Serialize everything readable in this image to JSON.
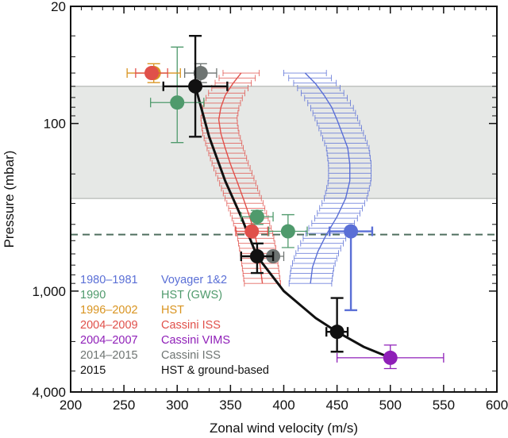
{
  "chart_data": {
    "type": "scatter",
    "title": "",
    "xlabel": "Zonal wind velocity (m/s)",
    "ylabel": "Pressure (mbar)",
    "x_range": [
      200,
      600
    ],
    "y_range": [
      20,
      4000
    ],
    "y_scale": "log",
    "y_reversed": true,
    "x_ticks": [
      "200",
      "250",
      "300",
      "350",
      "400",
      "450",
      "500",
      "550",
      "600"
    ],
    "y_ticks": [
      {
        "value": 20,
        "label": "20"
      },
      {
        "value": 100,
        "label": "100"
      },
      {
        "value": 1000,
        "label": "1,000"
      },
      {
        "value": 4000,
        "label": "4,000"
      }
    ],
    "shaded_band": {
      "from": 60,
      "to": 280,
      "color": "#e6e8e6"
    },
    "reference_line": {
      "pressure": 460,
      "style": "dashed",
      "color": "#4f6f5f"
    },
    "legend": [
      {
        "years": "1980–1981",
        "source": "Voyager 1&2",
        "color": "#5a6fd6"
      },
      {
        "years": "1990",
        "source": "HST (GWS)",
        "color": "#4f9a6c"
      },
      {
        "years": "1996–2002",
        "source": "HST",
        "color": "#d99420"
      },
      {
        "years": "2004–2009",
        "source": "Cassini ISS",
        "color": "#e0504a"
      },
      {
        "years": "2004–2007",
        "source": "Cassini VIMS",
        "color": "#8f1fb8"
      },
      {
        "years": "2014–2015",
        "source": "Cassini ISS",
        "color": "#6e7472"
      },
      {
        "years": "2015",
        "source": "HST & ground-based",
        "color": "#111111"
      }
    ],
    "series": [
      {
        "name": "Voyager 1&2",
        "color": "#5a6fd6",
        "profile": [
          [
            420,
            50
          ],
          [
            430,
            58
          ],
          [
            438,
            68
          ],
          [
            445,
            80
          ],
          [
            450,
            95
          ],
          [
            455,
            115
          ],
          [
            460,
            140
          ],
          [
            462,
            175
          ],
          [
            462,
            220
          ],
          [
            458,
            280
          ],
          [
            450,
            360
          ],
          [
            440,
            460
          ],
          [
            432,
            580
          ],
          [
            427,
            720
          ],
          [
            425,
            900
          ]
        ],
        "xerr": 20,
        "points": [
          {
            "x": 463,
            "y": 440,
            "xerr": 20,
            "ylow": 440,
            "yhigh": 1300
          }
        ]
      },
      {
        "name": "HST (GWS)",
        "color": "#4f9a6c",
        "points": [
          {
            "x": 300,
            "y": 75,
            "xerr": 25,
            "ylow": 35,
            "yhigh": 130
          },
          {
            "x": 375,
            "y": 360,
            "xerr": 15,
            "ylow": 330,
            "yhigh": 400
          },
          {
            "x": 404,
            "y": 440,
            "xerr": 18,
            "ylow": 350,
            "yhigh": 550
          }
        ]
      },
      {
        "name": "HST",
        "color": "#d99420",
        "points": [
          {
            "x": 278,
            "y": 50,
            "xerr": 25,
            "ylow": 44,
            "yhigh": 57
          }
        ]
      },
      {
        "name": "Cassini ISS",
        "color": "#e0504a",
        "profile": [
          [
            360,
            50
          ],
          [
            352,
            58
          ],
          [
            345,
            68
          ],
          [
            341,
            80
          ],
          [
            339,
            95
          ],
          [
            341,
            115
          ],
          [
            345,
            140
          ],
          [
            350,
            175
          ],
          [
            356,
            220
          ],
          [
            362,
            280
          ],
          [
            368,
            360
          ],
          [
            373,
            460
          ],
          [
            376,
            580
          ],
          [
            378,
            720
          ],
          [
            380,
            900
          ]
        ],
        "xerr": 17,
        "points": [
          {
            "x": 276,
            "y": 50,
            "xerr": 15
          },
          {
            "x": 370,
            "y": 440,
            "xerr": 15
          }
        ]
      },
      {
        "name": "Cassini VIMS",
        "color": "#8f1fb8",
        "points": [
          {
            "x": 500,
            "y": 2500,
            "xerr": 50,
            "ylow": 2100,
            "yhigh": 2900
          }
        ]
      },
      {
        "name": "Cassini ISS (2014–2015)",
        "color": "#6e7472",
        "points": [
          {
            "x": 322,
            "y": 50,
            "xerr": 15,
            "ylow": 44,
            "yhigh": 57
          },
          {
            "x": 390,
            "y": 620,
            "xerr": 10
          }
        ]
      },
      {
        "name": "HST & ground-based",
        "color": "#111111",
        "points": [
          {
            "x": 317,
            "y": 60,
            "xerr": 30,
            "ylow": 30,
            "yhigh": 120
          },
          {
            "x": 375,
            "y": 620,
            "xerr": 15,
            "ylow": 520,
            "yhigh": 780
          },
          {
            "x": 450,
            "y": 1750,
            "xerr": 10,
            "ylow": 1100,
            "yhigh": 2300
          }
        ],
        "curve": [
          [
            317,
            60
          ],
          [
            330,
            120
          ],
          [
            345,
            220
          ],
          [
            360,
            360
          ],
          [
            375,
            620
          ],
          [
            400,
            1000
          ],
          [
            430,
            1450
          ],
          [
            450,
            1750
          ],
          [
            475,
            2150
          ],
          [
            500,
            2500
          ]
        ]
      }
    ]
  }
}
